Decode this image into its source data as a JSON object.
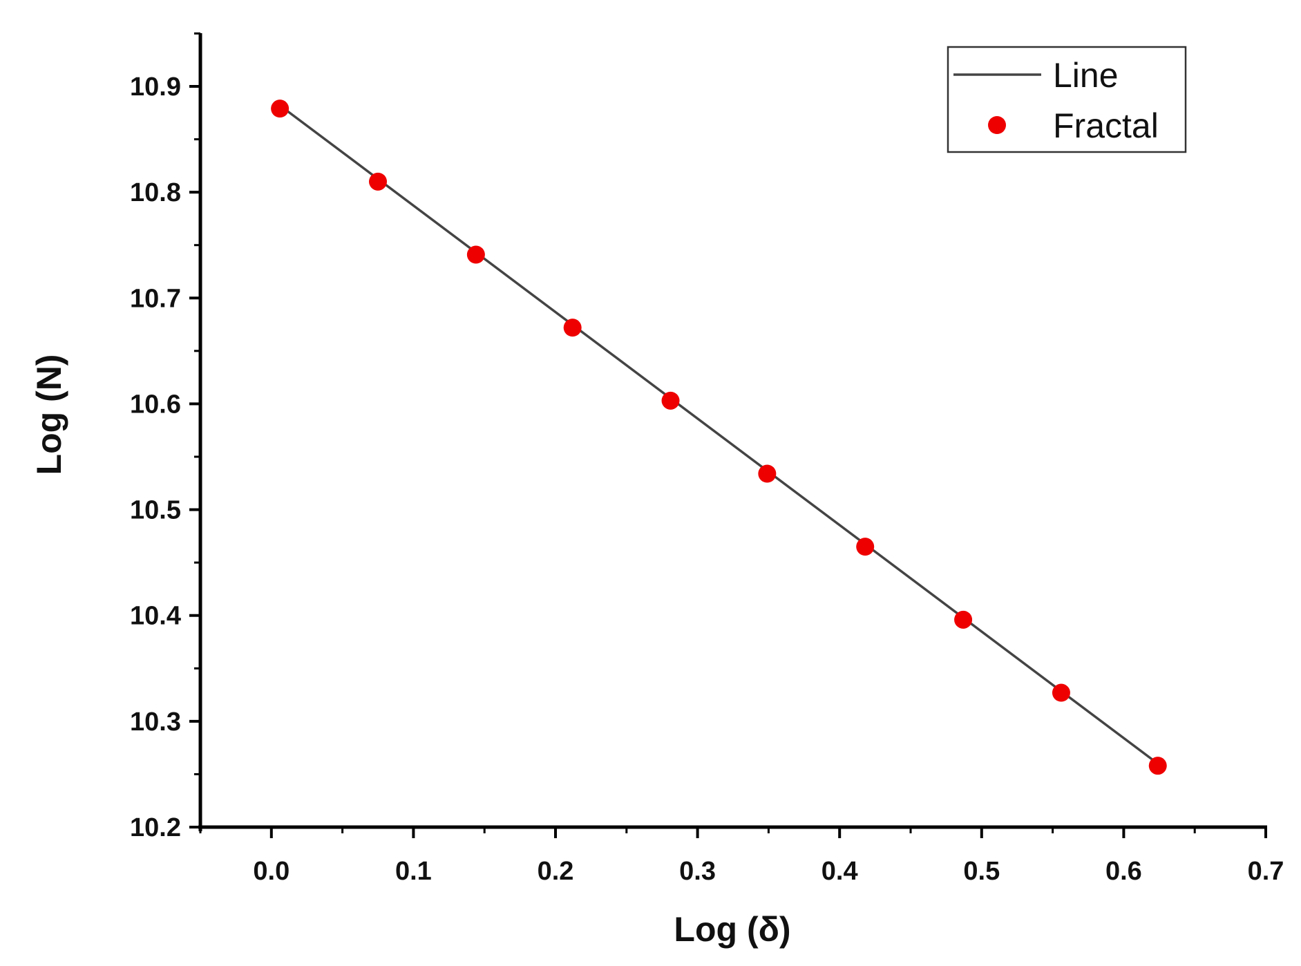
{
  "chart_data": {
    "type": "scatter",
    "title": "",
    "xlabel": "Log (δ)",
    "ylabel": "Log (N)",
    "xlim": [
      -0.05,
      0.7
    ],
    "ylim": [
      10.2,
      10.95
    ],
    "xticks": [
      0.0,
      0.1,
      0.2,
      0.3,
      0.4,
      0.5,
      0.6,
      0.7
    ],
    "xtick_labels": [
      "0.0",
      "0.1",
      "0.2",
      "0.3",
      "0.4",
      "0.5",
      "0.6",
      "0.7"
    ],
    "yticks": [
      10.2,
      10.3,
      10.4,
      10.5,
      10.6,
      10.7,
      10.8,
      10.9
    ],
    "ytick_labels": [
      "10.2",
      "10.3",
      "10.4",
      "10.5",
      "10.6",
      "10.7",
      "10.8",
      "10.9"
    ],
    "grid": false,
    "legend_position": "top-right",
    "series": [
      {
        "name": "Line",
        "kind": "line",
        "color": "#444444",
        "x": [
          0.006,
          0.624
        ],
        "y": [
          10.882,
          10.26
        ]
      },
      {
        "name": "Fractal",
        "kind": "scatter",
        "color": "#ee0000",
        "x": [
          0.006,
          0.075,
          0.144,
          0.212,
          0.281,
          0.349,
          0.418,
          0.487,
          0.556,
          0.624
        ],
        "y": [
          10.879,
          10.81,
          10.741,
          10.672,
          10.603,
          10.534,
          10.465,
          10.396,
          10.327,
          10.258
        ]
      }
    ]
  }
}
